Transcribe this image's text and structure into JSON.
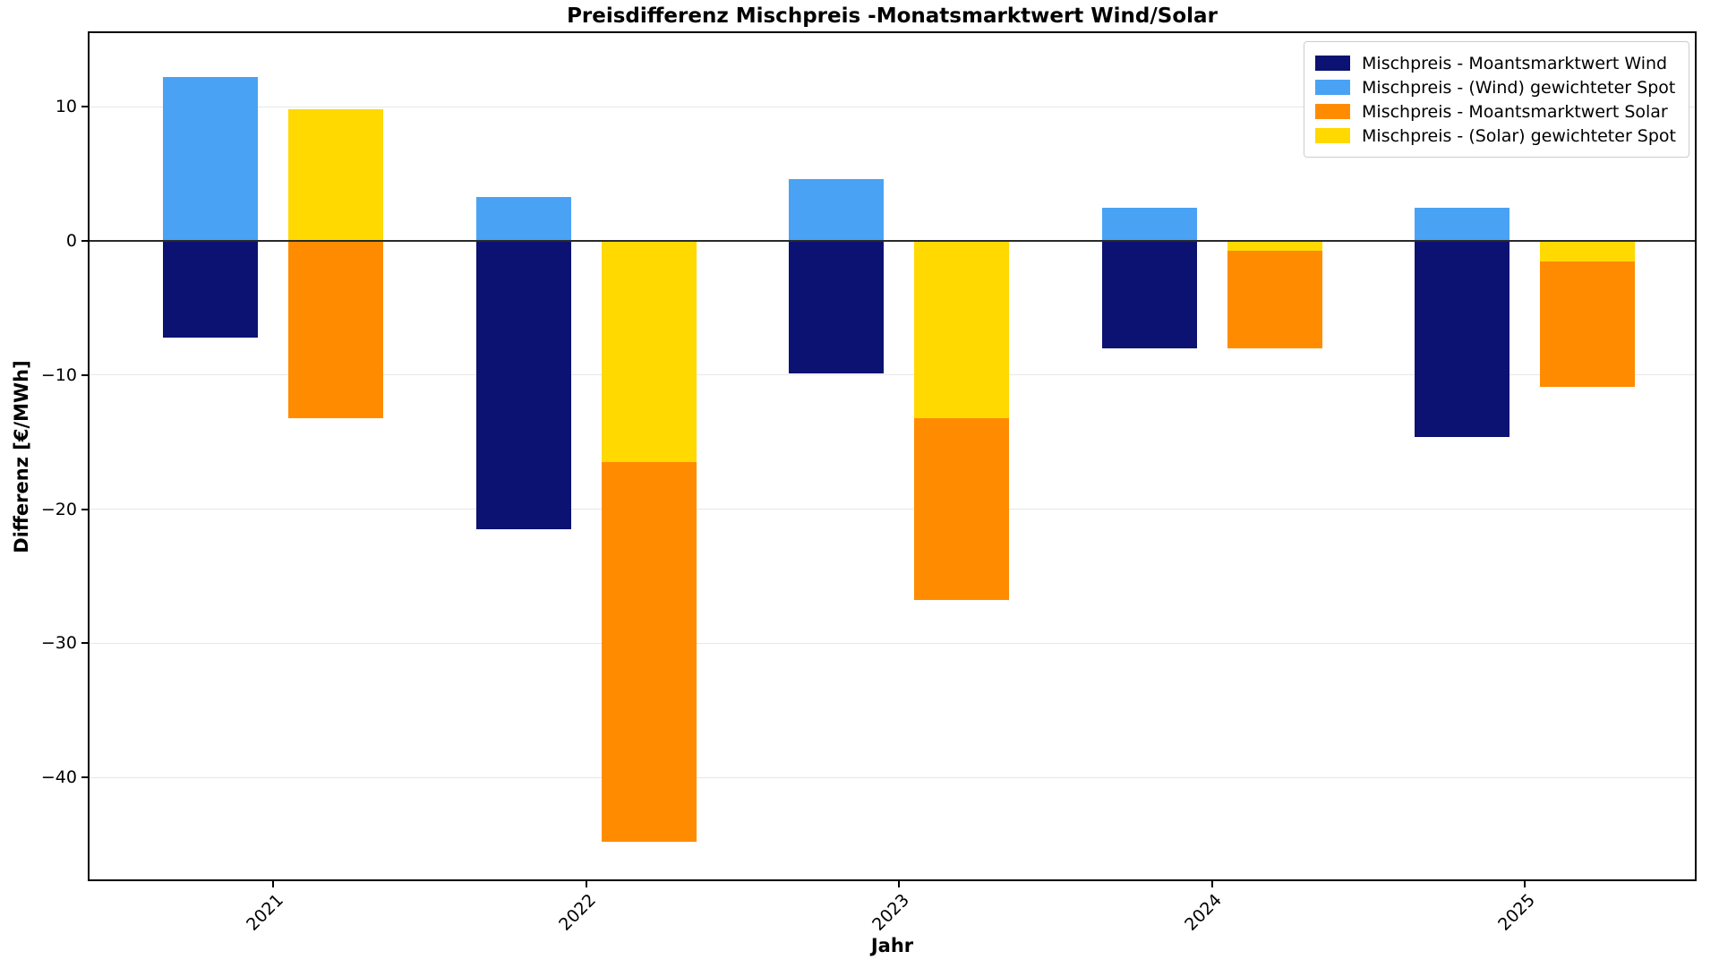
{
  "chart_data": {
    "type": "bar",
    "title": "Preisdifferenz Mischpreis -Monatsmarktwert Wind/Solar",
    "xlabel": "Jahr",
    "ylabel": "Differenz [€/MWh]",
    "categories": [
      "2021",
      "2022",
      "2023",
      "2024",
      "2025"
    ],
    "series": [
      {
        "id": "wind-marktwert",
        "name": "Mischpreis - Moantsmarktwert Wind",
        "group": "wind",
        "color": "#0b1272",
        "values": [
          -7.2,
          -21.5,
          -9.9,
          -8.0,
          -14.6
        ]
      },
      {
        "id": "wind-spot",
        "name": "Mischpreis - (Wind) gewichteter Spot",
        "group": "wind",
        "color": "#4aa2f5",
        "values": [
          12.2,
          3.3,
          4.6,
          2.5,
          2.5
        ]
      },
      {
        "id": "solar-marktwert",
        "name": "Mischpreis - Moantsmarktwert Solar",
        "group": "solar",
        "color": "#ff8c00",
        "values": [
          -13.2,
          -44.8,
          -26.8,
          -8.0,
          -10.9
        ]
      },
      {
        "id": "solar-spot",
        "name": "Mischpreis - (Solar) gewichteter Spot",
        "group": "solar",
        "color": "#ffd900",
        "values": [
          9.8,
          -16.5,
          -13.2,
          -0.7,
          -1.5
        ]
      }
    ],
    "ylim": [
      -47.6,
      15.5
    ],
    "yticks": [
      {
        "value": 10,
        "label": "10"
      },
      {
        "value": 0,
        "label": "0"
      },
      {
        "value": -10,
        "label": "−10"
      },
      {
        "value": -20,
        "label": "−20"
      },
      {
        "value": -30,
        "label": "−30"
      },
      {
        "value": -40,
        "label": "−40"
      }
    ],
    "grid": true,
    "zero_line": true,
    "legend_position": "upper right"
  }
}
